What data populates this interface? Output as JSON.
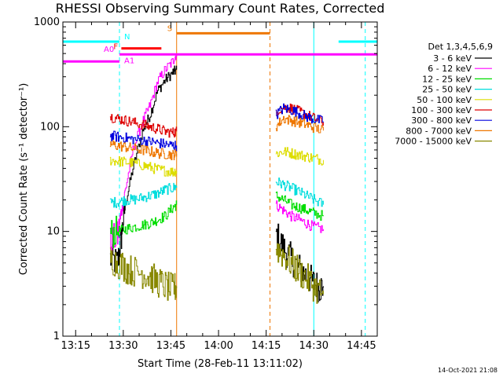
{
  "chart_data": {
    "type": "line",
    "title": "RHESSI Observing Summary Count Rates, Corrected",
    "xlabel": "Start Time (28-Feb-11 13:11:02)",
    "ylabel": "Corrected Count Rate (s⁻¹ detector⁻¹)",
    "yscale": "log",
    "ylim": [
      1,
      1000
    ],
    "xlim_minutes": [
      13.183,
      14.833
    ],
    "x_units": "hours (UT)",
    "xticks": [
      "13:15",
      "13:30",
      "13:45",
      "14:00",
      "14:15",
      "14:30",
      "14:45"
    ],
    "yticks": [
      "1",
      "10",
      "100",
      "1000"
    ],
    "footer": "14-Oct-2021 21:08",
    "legend_title": "Det 1,3,4,5,6,9",
    "segments": [
      [
        13.43,
        13.78
      ],
      [
        14.3,
        14.55
      ]
    ],
    "series": [
      {
        "name": "3 - 6 keV",
        "color": "#000000",
        "seg1": [
          [
            13.43,
            5.5
          ],
          [
            13.47,
            5
          ],
          [
            13.49,
            9
          ],
          [
            13.51,
            18
          ],
          [
            13.55,
            40
          ],
          [
            13.6,
            90
          ],
          [
            13.64,
            130
          ],
          [
            13.68,
            220
          ],
          [
            13.72,
            280
          ],
          [
            13.76,
            330
          ],
          [
            13.78,
            350
          ]
        ],
        "seg2": [
          [
            14.3,
            9.5
          ],
          [
            14.34,
            7
          ],
          [
            14.38,
            5.5
          ],
          [
            14.42,
            4.5
          ],
          [
            14.46,
            3.8
          ],
          [
            14.5,
            3.2
          ],
          [
            14.53,
            2.9
          ],
          [
            14.55,
            3.0
          ]
        ]
      },
      {
        "name": "6 - 12 keV",
        "color": "#ff00ff",
        "seg1": [
          [
            13.43,
            8
          ],
          [
            13.47,
            9
          ],
          [
            13.49,
            15
          ],
          [
            13.51,
            25
          ],
          [
            13.55,
            60
          ],
          [
            13.6,
            110
          ],
          [
            13.64,
            160
          ],
          [
            13.68,
            270
          ],
          [
            13.72,
            350
          ],
          [
            13.76,
            420
          ],
          [
            13.78,
            500
          ]
        ],
        "seg2": [
          [
            14.3,
            18
          ],
          [
            14.34,
            16
          ],
          [
            14.38,
            14
          ],
          [
            14.42,
            13
          ],
          [
            14.46,
            12
          ],
          [
            14.5,
            11
          ],
          [
            14.55,
            10.5
          ]
        ]
      },
      {
        "name": "12 - 25 keV",
        "color": "#00dd00",
        "seg1": [
          [
            13.43,
            9.5
          ],
          [
            13.47,
            10
          ],
          [
            13.51,
            10.5
          ],
          [
            13.55,
            11
          ],
          [
            13.6,
            11.5
          ],
          [
            13.64,
            12
          ],
          [
            13.68,
            13
          ],
          [
            13.72,
            14
          ],
          [
            13.76,
            17
          ],
          [
            13.78,
            18
          ]
        ],
        "seg2": [
          [
            14.3,
            22
          ],
          [
            14.34,
            20
          ],
          [
            14.38,
            18
          ],
          [
            14.42,
            17
          ],
          [
            14.46,
            16
          ],
          [
            14.5,
            15
          ],
          [
            14.55,
            14
          ]
        ]
      },
      {
        "name": "25 - 50 keV",
        "color": "#00dddd",
        "seg1": [
          [
            13.43,
            19
          ],
          [
            13.47,
            19
          ],
          [
            13.51,
            20
          ],
          [
            13.55,
            20
          ],
          [
            13.6,
            21
          ],
          [
            13.64,
            22
          ],
          [
            13.68,
            23
          ],
          [
            13.72,
            25
          ],
          [
            13.76,
            26
          ],
          [
            13.78,
            27
          ]
        ],
        "seg2": [
          [
            14.3,
            30
          ],
          [
            14.34,
            28
          ],
          [
            14.38,
            26
          ],
          [
            14.42,
            24
          ],
          [
            14.46,
            22
          ],
          [
            14.5,
            20
          ],
          [
            14.55,
            18
          ]
        ]
      },
      {
        "name": "50 - 100 keV",
        "color": "#dddd00",
        "seg1": [
          [
            13.43,
            48
          ],
          [
            13.47,
            47
          ],
          [
            13.51,
            46
          ],
          [
            13.55,
            45
          ],
          [
            13.6,
            43
          ],
          [
            13.64,
            41
          ],
          [
            13.68,
            39
          ],
          [
            13.72,
            38
          ],
          [
            13.76,
            37
          ],
          [
            13.78,
            38
          ]
        ],
        "seg2": [
          [
            14.3,
            55
          ],
          [
            14.34,
            58
          ],
          [
            14.38,
            56
          ],
          [
            14.42,
            54
          ],
          [
            14.46,
            52
          ],
          [
            14.5,
            50
          ],
          [
            14.55,
            48
          ]
        ]
      },
      {
        "name": "100 - 300 keV",
        "color": "#dd0000",
        "seg1": [
          [
            13.43,
            125
          ],
          [
            13.47,
            120
          ],
          [
            13.51,
            115
          ],
          [
            13.55,
            110
          ],
          [
            13.6,
            105
          ],
          [
            13.64,
            100
          ],
          [
            13.68,
            95
          ],
          [
            13.72,
            90
          ],
          [
            13.76,
            88
          ],
          [
            13.78,
            90
          ]
        ],
        "seg2": [
          [
            14.3,
            140
          ],
          [
            14.34,
            155
          ],
          [
            14.38,
            150
          ],
          [
            14.42,
            140
          ],
          [
            14.46,
            130
          ],
          [
            14.5,
            120
          ],
          [
            14.55,
            110
          ]
        ]
      },
      {
        "name": "300 - 800 keV",
        "color": "#0000dd",
        "seg1": [
          [
            13.43,
            82
          ],
          [
            13.47,
            80
          ],
          [
            13.51,
            78
          ],
          [
            13.55,
            76
          ],
          [
            13.6,
            74
          ],
          [
            13.64,
            72
          ],
          [
            13.68,
            70
          ],
          [
            13.72,
            68
          ],
          [
            13.76,
            66
          ],
          [
            13.78,
            66
          ]
        ],
        "seg2": [
          [
            14.3,
            130
          ],
          [
            14.34,
            150
          ],
          [
            14.38,
            145
          ],
          [
            14.42,
            135
          ],
          [
            14.46,
            125
          ],
          [
            14.5,
            118
          ],
          [
            14.55,
            112
          ]
        ]
      },
      {
        "name": "800 - 7000 keV",
        "color": "#ee7700",
        "seg1": [
          [
            13.43,
            68
          ],
          [
            13.47,
            66
          ],
          [
            13.51,
            64
          ],
          [
            13.55,
            62
          ],
          [
            13.6,
            60
          ],
          [
            13.64,
            58
          ],
          [
            13.68,
            56
          ],
          [
            13.72,
            55
          ],
          [
            13.76,
            54
          ],
          [
            13.78,
            55
          ]
        ],
        "seg2": [
          [
            14.3,
            100
          ],
          [
            14.34,
            120
          ],
          [
            14.38,
            115
          ],
          [
            14.42,
            110
          ],
          [
            14.46,
            105
          ],
          [
            14.5,
            98
          ],
          [
            14.55,
            92
          ]
        ]
      },
      {
        "name": "7000 - 15000 keV",
        "color": "#888800",
        "seg1": [
          [
            13.43,
            5.5
          ],
          [
            13.47,
            5
          ],
          [
            13.51,
            4.5
          ],
          [
            13.55,
            4.2
          ],
          [
            13.6,
            4.0
          ],
          [
            13.64,
            3.7
          ],
          [
            13.68,
            3.3
          ],
          [
            13.72,
            3.0
          ],
          [
            13.76,
            2.8
          ],
          [
            13.78,
            3.0
          ]
        ],
        "seg2": [
          [
            14.3,
            7
          ],
          [
            14.34,
            6
          ],
          [
            14.38,
            5
          ],
          [
            14.42,
            4.2
          ],
          [
            14.46,
            3.6
          ],
          [
            14.5,
            3.0
          ],
          [
            14.55,
            2.5
          ]
        ]
      }
    ],
    "markers": {
      "N": {
        "label": "N",
        "color": "#00ffff",
        "bars": [
          [
            13.183,
            13.48
          ],
          [
            14.63,
            14.833
          ]
        ],
        "value": 650
      },
      "F": {
        "label": "F",
        "color": "#ff0000",
        "bars": [
          [
            13.49,
            13.7
          ]
        ],
        "value": 560
      },
      "S": {
        "label": "S",
        "color": "#ee7700",
        "bars": [
          [
            13.78,
            14.27
          ]
        ],
        "value": 780
      },
      "A0": {
        "label": "A0",
        "color": "#ff00ff",
        "bars": [
          [
            13.183,
            13.48
          ]
        ],
        "value": 420
      },
      "A1": {
        "label": "A1",
        "color": "#ff00ff",
        "bars": [
          [
            13.48,
            14.833
          ]
        ],
        "value": 490
      }
    },
    "vlines": [
      {
        "x": 13.183,
        "color": "#00ffff",
        "style": "solid"
      },
      {
        "x": 13.48,
        "color": "#00ffff",
        "style": "dashed"
      },
      {
        "x": 13.78,
        "color": "#ee7700",
        "style": "solid"
      },
      {
        "x": 14.27,
        "color": "#ee7700",
        "style": "dashed"
      },
      {
        "x": 14.5,
        "color": "#00ffff",
        "style": "solid"
      },
      {
        "x": 14.77,
        "color": "#00ffff",
        "style": "dashed"
      }
    ]
  }
}
